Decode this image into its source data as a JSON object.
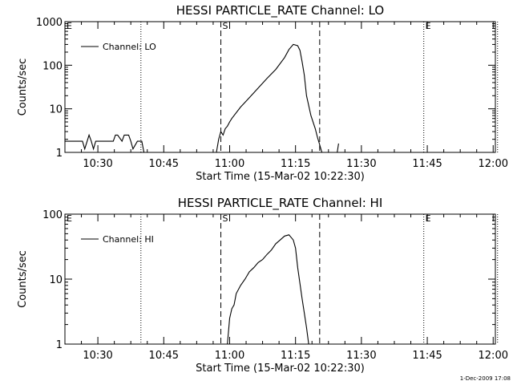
{
  "chart_data": [
    {
      "type": "line",
      "title": "HESSI PARTICLE_RATE Channel: LO",
      "xlabel": "Start Time (15-Mar-02 10:22:30)",
      "ylabel": "Counts/sec",
      "x_unit": "minutes after 10:22:30",
      "xlim": [
        0,
        98
      ],
      "ylim": [
        1,
        1000
      ],
      "y_scale": "log",
      "x_tick_labels": [
        "10:30",
        "10:45",
        "11:00",
        "11:15",
        "11:30",
        "11:45",
        "12:00"
      ],
      "x_tick_values": [
        7.5,
        22.5,
        37.5,
        52.5,
        67.5,
        82.5,
        97.5
      ],
      "y_tick_labels": [
        "1",
        "10",
        "100",
        "1000"
      ],
      "y_tick_values": [
        1,
        10,
        100,
        1000
      ],
      "legend": "top-left",
      "markers": [
        {
          "x": 17.3,
          "style": "dotted",
          "label": ""
        },
        {
          "x": 35.5,
          "style": "dashed",
          "label": "S"
        },
        {
          "x": 58.0,
          "style": "dashed",
          "label": ""
        },
        {
          "x": 81.7,
          "style": "dotted",
          "label": "E"
        },
        {
          "x": 98.5,
          "style": "dotted",
          "label": ""
        }
      ],
      "corner_label": "E",
      "series": [
        {
          "name": "Channel: LO",
          "x": [
            0,
            4,
            4.5,
            5.5,
            6,
            6.5,
            7,
            9,
            11,
            11.5,
            12,
            13,
            13.5,
            14.5,
            15,
            15.5,
            16.5,
            17.5,
            18,
            34.5,
            35,
            35.5,
            36,
            36.5,
            37,
            37.5,
            38,
            40,
            42,
            44,
            46,
            48,
            50,
            51,
            52,
            53,
            53.5,
            54,
            54.5,
            55,
            56,
            57,
            57.5,
            58,
            58.5,
            62,
            62.3
          ],
          "y": [
            1.8,
            1.8,
            1.2,
            2.5,
            1.8,
            1.2,
            1.8,
            1.8,
            1.8,
            2.5,
            2.5,
            1.8,
            2.5,
            2.5,
            1.8,
            1.2,
            1.8,
            1.8,
            1,
            1,
            2,
            3,
            2.5,
            3.5,
            4,
            5,
            6,
            11,
            18,
            30,
            50,
            80,
            150,
            230,
            300,
            280,
            220,
            120,
            60,
            20,
            7,
            3.5,
            2.2,
            1.5,
            1,
            1,
            1.6
          ]
        }
      ]
    },
    {
      "type": "line",
      "title": "HESSI PARTICLE_RATE Channel: HI",
      "xlabel": "Start Time (15-Mar-02 10:22:30)",
      "ylabel": "Counts/sec",
      "x_unit": "minutes after 10:22:30",
      "xlim": [
        0,
        98
      ],
      "ylim": [
        1,
        100
      ],
      "y_scale": "log",
      "x_tick_labels": [
        "10:30",
        "10:45",
        "11:00",
        "11:15",
        "11:30",
        "11:45",
        "12:00"
      ],
      "x_tick_values": [
        7.5,
        22.5,
        37.5,
        52.5,
        67.5,
        82.5,
        97.5
      ],
      "y_tick_labels": [
        "1",
        "10",
        "100"
      ],
      "y_tick_values": [
        1,
        10,
        100
      ],
      "legend": "top-left",
      "markers": [
        {
          "x": 17.3,
          "style": "dotted",
          "label": ""
        },
        {
          "x": 35.5,
          "style": "dashed",
          "label": "S"
        },
        {
          "x": 58.0,
          "style": "dashed",
          "label": ""
        },
        {
          "x": 81.7,
          "style": "dotted",
          "label": "E"
        },
        {
          "x": 98.5,
          "style": "dotted",
          "label": ""
        }
      ],
      "corner_label": "E",
      "series": [
        {
          "name": "Channel: HI",
          "x": [
            37,
            37.5,
            38,
            38.5,
            39,
            40,
            41,
            42,
            43,
            44,
            45,
            46,
            47,
            48,
            49,
            50,
            51,
            52,
            52.5,
            53,
            54,
            55,
            55.5
          ],
          "y": [
            1,
            2.5,
            3.5,
            4,
            6,
            8,
            10,
            13,
            15,
            18,
            20,
            24,
            28,
            35,
            40,
            46,
            48,
            40,
            30,
            15,
            5,
            1.8,
            1
          ]
        }
      ]
    }
  ],
  "footer": "1-Dec-2009 17:08"
}
